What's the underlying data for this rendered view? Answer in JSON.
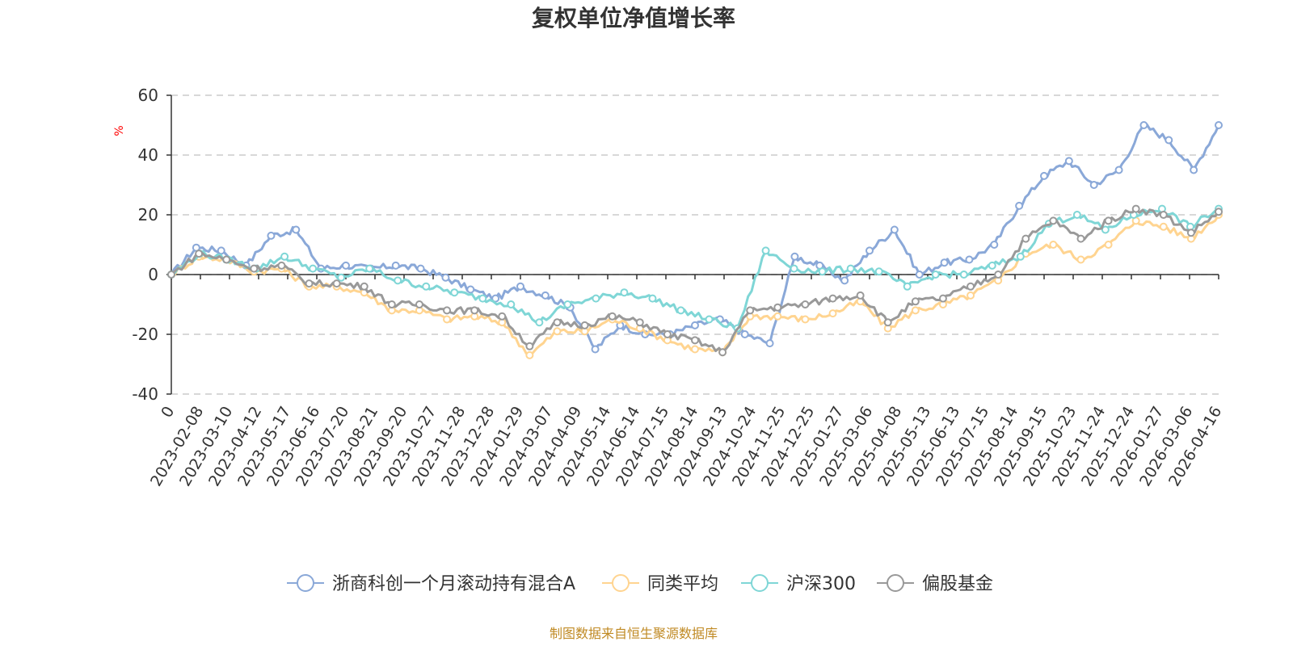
{
  "chart_data": {
    "type": "line",
    "title": "复权单位净值增长率",
    "ylabel": "%",
    "ylim": [
      -40,
      60
    ],
    "yticks": [
      60,
      40,
      20,
      0,
      -20,
      -40
    ],
    "grid": true,
    "legend_position": "bottom",
    "xticks": [
      "0",
      "2023-02-08",
      "2023-03-10",
      "2023-04-12",
      "2023-05-17",
      "2023-06-16",
      "2023-07-20",
      "2023-08-21",
      "2023-09-20",
      "2023-10-27",
      "2023-11-28",
      "2023-12-28",
      "2024-01-29",
      "2024-03-07",
      "2024-04-09",
      "2024-05-14",
      "2024-06-14",
      "2024-07-15",
      "2024-08-14",
      "2024-09-13",
      "2024-10-24",
      "2024-11-25",
      "2024-12-25",
      "2025-01-27",
      "2025-03-06",
      "2025-04-08",
      "2025-05-13",
      "2025-06-13",
      "2025-07-15",
      "2025-08-14",
      "2025-09-15",
      "2025-10-23",
      "2025-11-24",
      "2025-12-24",
      "2026-01-27",
      "2026-03-06",
      "2026-04-16"
    ],
    "series": [
      {
        "name": "浙商科创一个月滚动持有混合A",
        "color": "#8aa8d8",
        "values": [
          0,
          9,
          8,
          3,
          13,
          15,
          2,
          3,
          2,
          3,
          2,
          -1,
          -5,
          -8,
          -4,
          -7,
          -11,
          -25,
          -17,
          -20,
          -20,
          -17,
          -15,
          -20,
          -23,
          6,
          3,
          -2,
          8,
          15,
          0,
          4,
          5,
          10,
          23,
          33,
          38,
          30,
          35,
          50,
          45,
          35,
          50
        ]
      },
      {
        "name": "同类平均",
        "color": "#ffd490",
        "values": [
          0,
          6,
          5,
          1,
          2,
          -4,
          -4,
          -6,
          -12,
          -12,
          -15,
          -14,
          -16,
          -27,
          -19,
          -19,
          -15,
          -18,
          -22,
          -25,
          -26,
          -14,
          -14,
          -15,
          -13,
          -9,
          -18,
          -12,
          -10,
          -7,
          -2,
          7,
          10,
          5,
          10,
          18,
          16,
          12,
          20
        ]
      },
      {
        "name": "沪深300",
        "color": "#7fd6d6",
        "values": [
          0,
          7,
          5,
          2,
          6,
          2,
          -1,
          2,
          -2,
          -4,
          -6,
          -8,
          -10,
          -16,
          -10,
          -8,
          -6,
          -8,
          -12,
          -15,
          -18,
          8,
          2,
          1,
          2,
          1,
          -4,
          0,
          0,
          3,
          6,
          17,
          20,
          15,
          20,
          22,
          16,
          22
        ]
      },
      {
        "name": "偏股基金",
        "color": "#999999",
        "values": [
          0,
          7,
          5,
          2,
          3,
          -3,
          -3,
          -4,
          -10,
          -10,
          -12,
          -12,
          -14,
          -24,
          -16,
          -17,
          -14,
          -16,
          -20,
          -22,
          -26,
          -12,
          -11,
          -10,
          -8,
          -7,
          -16,
          -9,
          -8,
          -4,
          0,
          12,
          18,
          12,
          18,
          22,
          20,
          14,
          21
        ]
      }
    ]
  },
  "footer": {
    "source": "制图数据来自恒生聚源数据库"
  }
}
